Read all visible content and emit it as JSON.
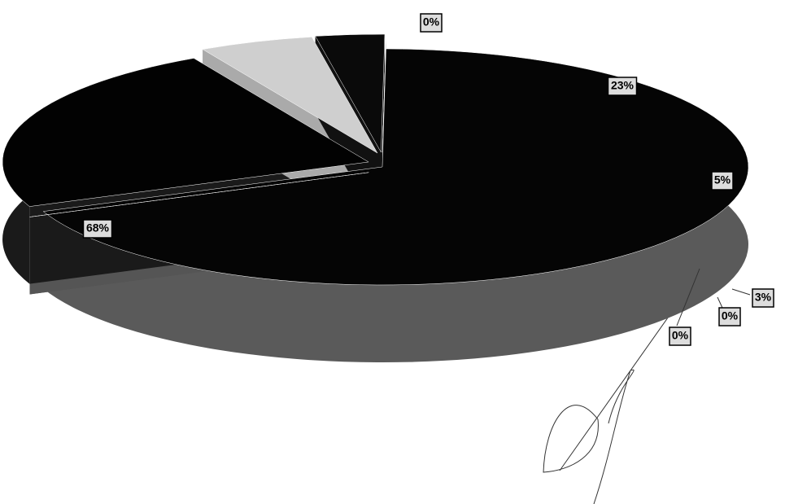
{
  "chart_data": {
    "type": "pie3d",
    "values": [
      68,
      0,
      23,
      5,
      3,
      0,
      0
    ],
    "value_labels": [
      "68%",
      "0%",
      "23%",
      "5%",
      "3%",
      "0%",
      "0%"
    ],
    "colors": [
      "#050505",
      "#7a7a7a",
      "#020202",
      "#cfcfcf",
      "#0a0a0a",
      "#dedede",
      "#d2d2d2"
    ],
    "side_colors": [
      "#5a5a5a",
      "#555555",
      "#1a1a1a",
      "#aaaaaa",
      "#111111",
      "#c8c8c8",
      "#bdbdbd"
    ]
  }
}
